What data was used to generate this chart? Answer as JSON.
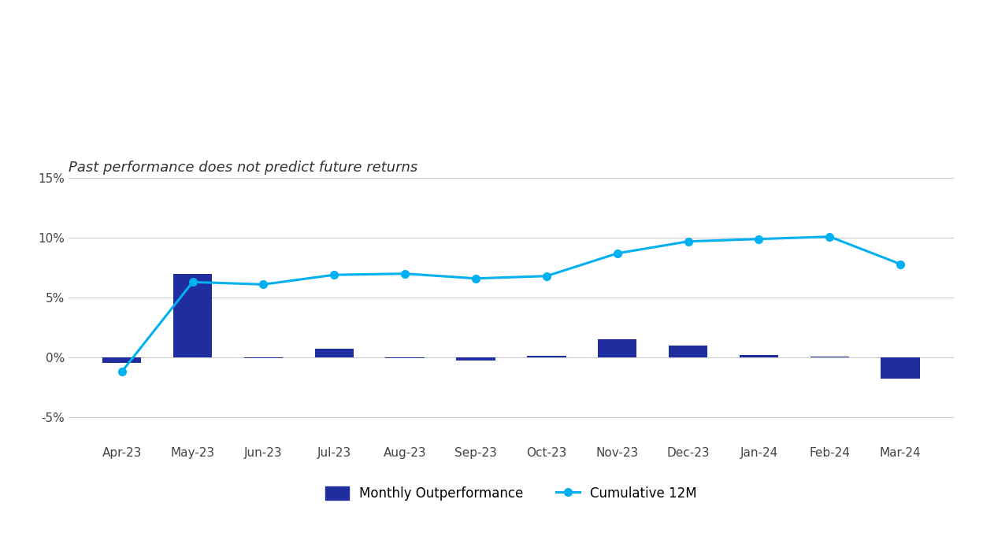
{
  "categories": [
    "Apr-23",
    "May-23",
    "Jun-23",
    "Jul-23",
    "Aug-23",
    "Sep-23",
    "Oct-23",
    "Nov-23",
    "Dec-23",
    "Jan-24",
    "Feb-24",
    "Mar-24"
  ],
  "monthly_outperformance": [
    -0.5,
    7.0,
    -0.1,
    0.7,
    -0.05,
    -0.3,
    0.1,
    1.5,
    1.0,
    0.2,
    0.05,
    -1.8
  ],
  "cumulative_12m": [
    -1.2,
    6.3,
    6.1,
    6.9,
    7.0,
    6.6,
    6.8,
    8.7,
    9.7,
    9.9,
    10.1,
    7.8
  ],
  "bar_color": "#1f2d9e",
  "line_color": "#00b0f0",
  "marker_color": "#00b0f0",
  "subtitle": "Past performance does not predict future returns",
  "subtitle_style": "italic",
  "ylim_min": -7,
  "ylim_max": 17,
  "yticks": [
    -5,
    0,
    5,
    10,
    15
  ],
  "ytick_labels": [
    "-5%",
    "0%",
    "5%",
    "10%",
    "15%"
  ],
  "legend_bar_label": "Monthly Outperformance",
  "legend_line_label": "Cumulative 12M",
  "background_color": "#ffffff",
  "grid_color": "#cccccc",
  "bar_width": 0.55,
  "line_width": 2.2,
  "marker_size": 7,
  "subtitle_fontsize": 13,
  "tick_fontsize": 11,
  "legend_fontsize": 12
}
